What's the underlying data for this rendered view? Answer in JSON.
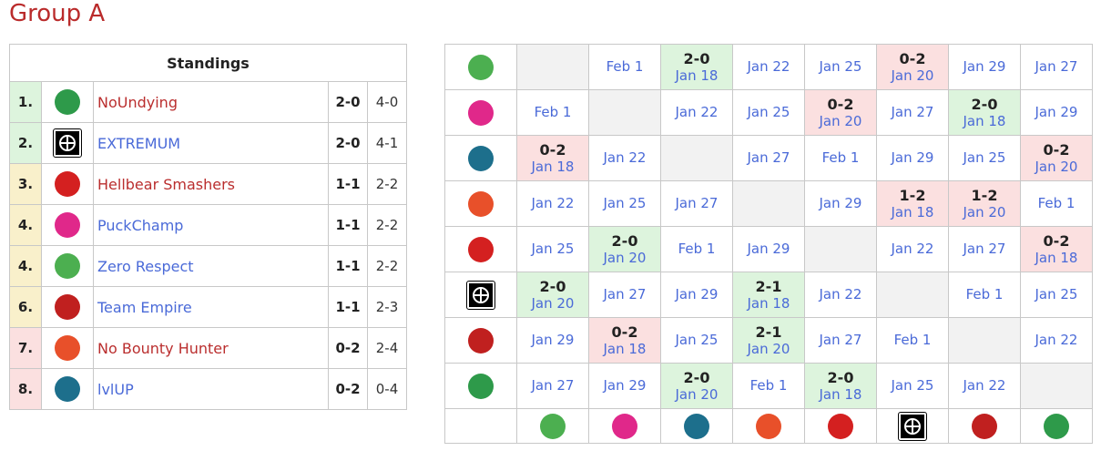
{
  "title": "Group A",
  "standings": {
    "header": "Standings",
    "rows": [
      {
        "rank": "1.",
        "team": "NoUndying",
        "logo": "noundying-logo",
        "series": "2-0",
        "games": "4-0",
        "tier": "g",
        "link": "red"
      },
      {
        "rank": "2.",
        "team": "EXTREMUM",
        "logo": "extremum-logo",
        "series": "2-0",
        "games": "4-1",
        "tier": "g",
        "link": "blue"
      },
      {
        "rank": "3.",
        "team": "Hellbear Smashers",
        "logo": "hellbear-logo",
        "series": "1-1",
        "games": "2-2",
        "tier": "y",
        "link": "red"
      },
      {
        "rank": "4.",
        "team": "PuckChamp",
        "logo": "puckchamp-logo",
        "series": "1-1",
        "games": "2-2",
        "tier": "y",
        "link": "blue"
      },
      {
        "rank": "4.",
        "team": "Zero Respect",
        "logo": "zero-respect-logo",
        "series": "1-1",
        "games": "2-2",
        "tier": "y",
        "link": "blue"
      },
      {
        "rank": "6.",
        "team": "Team Empire",
        "logo": "team-empire-logo",
        "series": "1-1",
        "games": "2-3",
        "tier": "y",
        "link": "blue"
      },
      {
        "rank": "7.",
        "team": "No Bounty Hunter",
        "logo": "no-bounty-hunter-logo",
        "series": "0-2",
        "games": "2-4",
        "tier": "r",
        "link": "red"
      },
      {
        "rank": "8.",
        "team": "lvlUP",
        "logo": "lvlup-logo",
        "series": "0-2",
        "games": "0-4",
        "tier": "r",
        "link": "blue"
      }
    ]
  },
  "colors": {
    "zero-respect-logo": "#4caf50",
    "puckchamp-logo": "#e0288a",
    "lvlup-logo": "#1d6f8c",
    "no-bounty-hunter-logo": "#e8502a",
    "hellbear-logo": "#d42020",
    "extremum-logo": "#000000",
    "team-empire-logo": "#c0201f",
    "noundying-logo": "#2e9a4a"
  },
  "crosstable": {
    "teams": [
      "zero-respect-logo",
      "puckchamp-logo",
      "lvlup-logo",
      "no-bounty-hunter-logo",
      "hellbear-logo",
      "extremum-logo",
      "team-empire-logo",
      "noundying-logo"
    ],
    "rows": [
      [
        null,
        {
          "date": "Feb 1"
        },
        {
          "score": "2-0",
          "date": "Jan 18",
          "res": "g"
        },
        {
          "date": "Jan 22"
        },
        {
          "date": "Jan 25"
        },
        {
          "score": "0-2",
          "date": "Jan 20",
          "res": "r"
        },
        {
          "date": "Jan 29"
        },
        {
          "date": "Jan 27"
        }
      ],
      [
        {
          "date": "Feb 1"
        },
        null,
        {
          "date": "Jan 22"
        },
        {
          "date": "Jan 25"
        },
        {
          "score": "0-2",
          "date": "Jan 20",
          "res": "r"
        },
        {
          "date": "Jan 27"
        },
        {
          "score": "2-0",
          "date": "Jan 18",
          "res": "g"
        },
        {
          "date": "Jan 29"
        }
      ],
      [
        {
          "score": "0-2",
          "date": "Jan 18",
          "res": "r"
        },
        {
          "date": "Jan 22"
        },
        null,
        {
          "date": "Jan 27"
        },
        {
          "date": "Feb 1"
        },
        {
          "date": "Jan 29"
        },
        {
          "date": "Jan 25"
        },
        {
          "score": "0-2",
          "date": "Jan 20",
          "res": "r"
        }
      ],
      [
        {
          "date": "Jan 22"
        },
        {
          "date": "Jan 25"
        },
        {
          "date": "Jan 27"
        },
        null,
        {
          "date": "Jan 29"
        },
        {
          "score": "1-2",
          "date": "Jan 18",
          "res": "r"
        },
        {
          "score": "1-2",
          "date": "Jan 20",
          "res": "r"
        },
        {
          "date": "Feb 1"
        }
      ],
      [
        {
          "date": "Jan 25"
        },
        {
          "score": "2-0",
          "date": "Jan 20",
          "res": "g"
        },
        {
          "date": "Feb 1"
        },
        {
          "date": "Jan 29"
        },
        null,
        {
          "date": "Jan 22"
        },
        {
          "date": "Jan 27"
        },
        {
          "score": "0-2",
          "date": "Jan 18",
          "res": "r"
        }
      ],
      [
        {
          "score": "2-0",
          "date": "Jan 20",
          "res": "g"
        },
        {
          "date": "Jan 27"
        },
        {
          "date": "Jan 29"
        },
        {
          "score": "2-1",
          "date": "Jan 18",
          "res": "g"
        },
        {
          "date": "Jan 22"
        },
        null,
        {
          "date": "Feb 1"
        },
        {
          "date": "Jan 25"
        }
      ],
      [
        {
          "date": "Jan 29"
        },
        {
          "score": "0-2",
          "date": "Jan 18",
          "res": "r"
        },
        {
          "date": "Jan 25"
        },
        {
          "score": "2-1",
          "date": "Jan 20",
          "res": "g"
        },
        {
          "date": "Jan 27"
        },
        {
          "date": "Feb 1"
        },
        null,
        {
          "date": "Jan 22"
        }
      ],
      [
        {
          "date": "Jan 27"
        },
        {
          "date": "Jan 29"
        },
        {
          "score": "2-0",
          "date": "Jan 20",
          "res": "g"
        },
        {
          "date": "Feb 1"
        },
        {
          "score": "2-0",
          "date": "Jan 18",
          "res": "g"
        },
        {
          "date": "Jan 25"
        },
        {
          "date": "Jan 22"
        },
        null
      ]
    ]
  }
}
